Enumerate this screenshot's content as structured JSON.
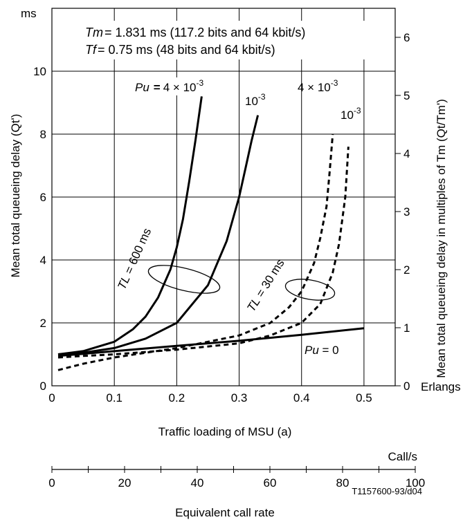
{
  "chart_data": {
    "type": "line",
    "title": "",
    "xlabel": "Traffic loading of MSU (a)",
    "ylabel": "Mean total queueing delay (Qt')",
    "y2label": "Mean total queueing delay in multiples of  Tm (Qt/Tm')",
    "y_unit": "ms",
    "x_unit": "Erlangs",
    "xlim": [
      0,
      0.55
    ],
    "ylim": [
      0,
      12
    ],
    "y2lim": [
      0,
      6.5
    ],
    "x_ticks": [
      "0",
      "0.1",
      "0.2",
      "0.3",
      "0.4",
      "0.5"
    ],
    "y_ticks": [
      "0",
      "2",
      "4",
      "6",
      "8",
      "10"
    ],
    "y2_ticks": [
      "0",
      "1",
      "2",
      "3",
      "4",
      "5",
      "6"
    ],
    "grid": true,
    "secondary_x": {
      "label": "Equivalent call rate",
      "unit": "Call/s",
      "range": [
        0,
        100
      ],
      "ticks": [
        "0",
        "20",
        "40",
        "60",
        "80",
        "100"
      ]
    },
    "annotations": {
      "tm_symbol": "Tm",
      "tm_text": "=  1.831 ms (117.2 bits and 64 kbit/s)",
      "tf_symbol": "Tf",
      "tf_text": "=  0.75 ms (48 bits and 64 kbit/s)",
      "pu_symbol": "Pu",
      "pu_4e3_text": "4 × 10",
      "pu_4e3_exp": "-3",
      "pu_1e3_text": "10",
      "pu_1e3_exp": "-3",
      "dash_4e3_text": "4 × 10",
      "dash_4e3_exp": "-3",
      "dash_1e3_text": "10",
      "dash_1e3_exp": "-3",
      "tl600_symbol": "TL",
      "tl600_text": " = 600 ms",
      "tl30_symbol": "TL",
      "tl30_text": " = 30 ms",
      "pu0_symbol": "Pu",
      "pu0_text": " = 0",
      "code": "T1157600-93/d04"
    },
    "series": [
      {
        "style": "solid",
        "x": [
          0.01,
          0.05,
          0.1,
          0.13,
          0.15,
          0.17,
          0.19,
          0.2,
          0.21,
          0.22,
          0.23,
          0.24
        ],
        "y": [
          1.0,
          1.1,
          1.4,
          1.8,
          2.2,
          2.8,
          3.7,
          4.4,
          5.3,
          6.5,
          7.8,
          9.2
        ]
      },
      {
        "style": "solid",
        "x": [
          0.01,
          0.05,
          0.1,
          0.15,
          0.2,
          0.25,
          0.28,
          0.3,
          0.31,
          0.32,
          0.33
        ],
        "y": [
          1.0,
          1.05,
          1.2,
          1.5,
          2.0,
          3.2,
          4.6,
          6.0,
          6.9,
          7.8,
          8.6
        ]
      },
      {
        "style": "dashed",
        "x": [
          0.01,
          0.05,
          0.1,
          0.2,
          0.3,
          0.35,
          0.38,
          0.4,
          0.42,
          0.43,
          0.44,
          0.445,
          0.45
        ],
        "y": [
          0.5,
          0.7,
          0.9,
          1.2,
          1.6,
          2.0,
          2.5,
          3.0,
          3.9,
          4.7,
          5.7,
          6.8,
          8.0
        ]
      },
      {
        "style": "dashed",
        "x": [
          0.01,
          0.05,
          0.1,
          0.2,
          0.3,
          0.35,
          0.4,
          0.43,
          0.45,
          0.46,
          0.47,
          0.475
        ],
        "y": [
          0.9,
          0.95,
          1.0,
          1.15,
          1.35,
          1.6,
          2.0,
          2.6,
          3.6,
          4.5,
          6.0,
          7.6
        ]
      },
      {
        "style": "solid",
        "x": [
          0.01,
          0.1,
          0.2,
          0.3,
          0.4,
          0.5
        ],
        "y": [
          0.95,
          1.1,
          1.27,
          1.43,
          1.62,
          1.83
        ]
      }
    ]
  }
}
